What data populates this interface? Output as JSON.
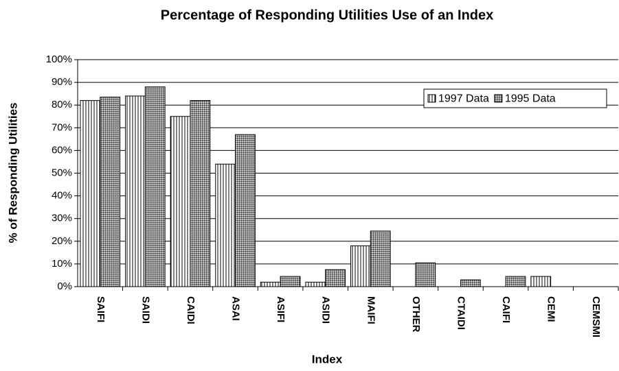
{
  "chart_data": {
    "type": "bar",
    "title": "Percentage of Responding Utilities Use of an Index",
    "x_label": "Index",
    "y_label": "% of Responding  Utilities",
    "categories": [
      "SAIFI",
      "SAIDI",
      "CAIDI",
      "ASAI",
      "ASIFI",
      "ASIDI",
      "MAIFI",
      "OTHER",
      "CTAIDI",
      "CAIFI",
      "CEMI",
      "CEMSMI"
    ],
    "series": [
      {
        "name": "1997 Data",
        "color": "#000000",
        "pattern": "vertical",
        "values": [
          82,
          84,
          75,
          54,
          2,
          2,
          18,
          0,
          0,
          0,
          4.5,
          0
        ]
      },
      {
        "name": "1995 Data",
        "color": "#000000",
        "pattern": "checker",
        "values": [
          83.5,
          88,
          82,
          67,
          4.5,
          7.5,
          24.5,
          10.5,
          3,
          4.5,
          0,
          0
        ]
      }
    ],
    "ylim": [
      0,
      100
    ],
    "yticks": [
      {
        "value": 0,
        "label": "0%"
      },
      {
        "value": 10,
        "label": "10%"
      },
      {
        "value": 20,
        "label": "20%"
      },
      {
        "value": 30,
        "label": "30%"
      },
      {
        "value": 40,
        "label": "40%"
      },
      {
        "value": 50,
        "label": "50%"
      },
      {
        "value": 60,
        "label": "60%"
      },
      {
        "value": 70,
        "label": "70%"
      },
      {
        "value": 80,
        "label": "80%"
      },
      {
        "value": 90,
        "label": "90%"
      },
      {
        "value": 100,
        "label": "100%"
      }
    ],
    "grid": true,
    "legend": "upper right"
  }
}
